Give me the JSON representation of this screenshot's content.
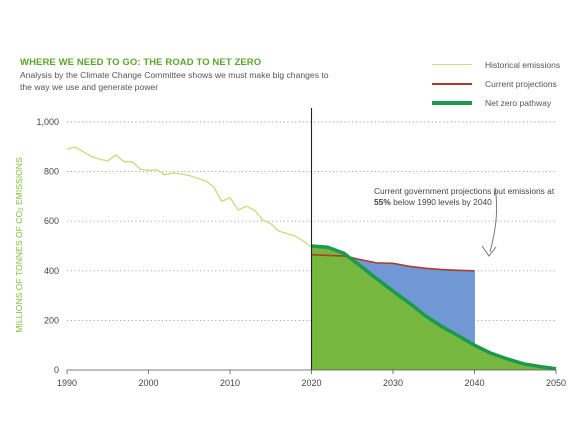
{
  "header": {
    "title": "WHERE WE NEED TO GO: THE ROAD TO NET ZERO",
    "subtitle": "Analysis by the Climate Change Committee shows we must make big changes to the way we use and generate power"
  },
  "legend": {
    "position": "top-right",
    "items": [
      {
        "label": "Historical emissions",
        "color": "#c5dd7a"
      },
      {
        "label": "Current projections",
        "color": "#b03a2e"
      },
      {
        "label": "Net zero pathway",
        "color": "#1a9a4a"
      }
    ]
  },
  "annotation": {
    "before": "Current government projections put emissions at ",
    "bold": "55%",
    "after": " below 1990 levels by 2040"
  },
  "axis": {
    "ylabel_main": "MILLIONS OF TONNES OF CO",
    "ylabel_sub": "2",
    "ylabel_end": " EMISSIONS"
  },
  "colors": {
    "green_fill": "#76b83f",
    "blue_fill": "#6f98d4",
    "net_zero_line": "#1a9a4a",
    "projection_line": "#b03a2e",
    "historical_line": "#c5dd7a",
    "axis_text": "#444444",
    "ylabel": "#7cbf3b"
  },
  "chart_data": {
    "type": "line",
    "xlim": [
      1990,
      2050
    ],
    "ylim": [
      0,
      1000
    ],
    "x_ticks": [
      "1990",
      "2000",
      "2010",
      "2020",
      "2030",
      "2040",
      "2050"
    ],
    "y_ticks": [
      "0",
      "200",
      "400",
      "600",
      "800",
      "1,000"
    ],
    "grid": "horizontal dotted",
    "marker_year": 2020,
    "series": [
      {
        "name": "Historical emissions",
        "x": [
          1990,
          1991,
          1992,
          1993,
          1994,
          1995,
          1996,
          1997,
          1998,
          1999,
          2000,
          2001,
          2002,
          2003,
          2004,
          2005,
          2006,
          2007,
          2008,
          2009,
          2010,
          2011,
          2012,
          2013,
          2014,
          2015,
          2016,
          2017,
          2018,
          2019,
          2020
        ],
        "y": [
          890,
          899,
          880,
          861,
          850,
          843,
          867,
          840,
          840,
          810,
          805,
          808,
          787,
          794,
          791,
          784,
          773,
          763,
          738,
          680,
          695,
          645,
          660,
          645,
          605,
          590,
          560,
          550,
          540,
          520,
          495
        ]
      },
      {
        "name": "Current projections",
        "x": [
          2020,
          2022,
          2024,
          2026,
          2028,
          2030,
          2032,
          2034,
          2036,
          2038,
          2040
        ],
        "y": [
          465,
          462,
          460,
          445,
          432,
          430,
          418,
          410,
          405,
          402,
          400
        ]
      },
      {
        "name": "Net zero pathway",
        "x": [
          2020,
          2022,
          2024,
          2026,
          2028,
          2030,
          2032,
          2034,
          2036,
          2038,
          2040,
          2042,
          2044,
          2046,
          2048,
          2050
        ],
        "y": [
          500,
          495,
          470,
          420,
          368,
          318,
          270,
          218,
          175,
          138,
          100,
          68,
          45,
          25,
          14,
          5
        ]
      }
    ]
  }
}
